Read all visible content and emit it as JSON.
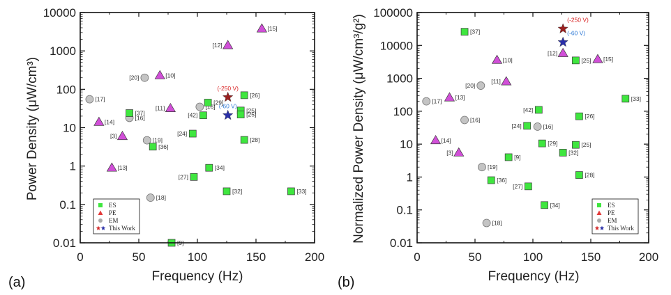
{
  "colors": {
    "ES": "#3fe63f",
    "PE": "#d14fd8",
    "EM": "#c4c4c4",
    "star_high": "#9a1f1f",
    "star_low": "#2a2fa8",
    "ann_high": "#d81e1e",
    "ann_low": "#2f7ad6"
  },
  "legend": {
    "items": [
      "ES",
      "PE",
      "EM",
      "This Work"
    ]
  },
  "chart_data": [
    {
      "type": "scatter",
      "panel_label": "(a)",
      "xlabel": "Frequency (Hz)",
      "ylabel": "Power Density (μW/cm³)",
      "xlim": [
        0,
        200
      ],
      "ylim": [
        0.01,
        10000
      ],
      "yscale": "log",
      "xticks": [
        "0",
        "50",
        "100",
        "150",
        "200"
      ],
      "yticks": [
        "0.01",
        "0.1",
        "1",
        "10",
        "100",
        "1000",
        "10000"
      ],
      "points": [
        {
          "cat": "EM",
          "x": 8,
          "y": 55,
          "label": "[17]"
        },
        {
          "cat": "EM",
          "x": 55,
          "y": 200,
          "label": "[20]"
        },
        {
          "cat": "EM",
          "x": 42,
          "y": 18,
          "label": "[16]"
        },
        {
          "cat": "EM",
          "x": 57,
          "y": 4.7,
          "label": "[19]"
        },
        {
          "cat": "EM",
          "x": 60,
          "y": 0.15,
          "label": "[18]"
        },
        {
          "cat": "EM",
          "x": 102,
          "y": 35,
          "label": "[16]"
        },
        {
          "cat": "PE",
          "x": 16,
          "y": 14,
          "label": "[14]"
        },
        {
          "cat": "PE",
          "x": 36,
          "y": 6,
          "label": "[3]"
        },
        {
          "cat": "PE",
          "x": 27,
          "y": 0.9,
          "label": "[13]"
        },
        {
          "cat": "PE",
          "x": 68,
          "y": 230,
          "label": "[10]"
        },
        {
          "cat": "PE",
          "x": 77,
          "y": 32,
          "label": "[11]"
        },
        {
          "cat": "PE",
          "x": 126,
          "y": 1400,
          "label": "[12]"
        },
        {
          "cat": "PE",
          "x": 155,
          "y": 3800,
          "label": "[15]"
        },
        {
          "cat": "ES",
          "x": 42,
          "y": 24,
          "label": "[37]"
        },
        {
          "cat": "ES",
          "x": 62,
          "y": 3.2,
          "label": "[36]"
        },
        {
          "cat": "ES",
          "x": 96,
          "y": 7,
          "label": "[24]"
        },
        {
          "cat": "ES",
          "x": 105,
          "y": 21,
          "label": "[42]"
        },
        {
          "cat": "ES",
          "x": 109,
          "y": 45,
          "label": "[29]"
        },
        {
          "cat": "ES",
          "x": 97,
          "y": 0.52,
          "label": "[27]"
        },
        {
          "cat": "ES",
          "x": 110,
          "y": 0.9,
          "label": "[34]"
        },
        {
          "cat": "ES",
          "x": 78,
          "y": 0.01,
          "label": "[9]"
        },
        {
          "cat": "ES",
          "x": 125,
          "y": 0.22,
          "label": "[32]"
        },
        {
          "cat": "ES",
          "x": 140,
          "y": 70,
          "label": "[26]"
        },
        {
          "cat": "ES",
          "x": 137,
          "y": 28,
          "label": "[25]"
        },
        {
          "cat": "ES",
          "x": 137,
          "y": 22,
          "label": "[25]"
        },
        {
          "cat": "ES",
          "x": 140,
          "y": 4.8,
          "label": "[28]"
        },
        {
          "cat": "ES",
          "x": 180,
          "y": 0.22,
          "label": "[33]"
        },
        {
          "cat": "TW",
          "x": 126,
          "y": 62,
          "label": "(-250 V)",
          "star": "high"
        },
        {
          "cat": "TW",
          "x": 126,
          "y": 21,
          "label": "(-60 V)",
          "star": "low"
        }
      ]
    },
    {
      "type": "scatter",
      "panel_label": "(b)",
      "xlabel": "Frequency (Hz)",
      "ylabel": "Normalized Power Density (μW/cm³/g²)",
      "xlim": [
        0,
        200
      ],
      "ylim": [
        0.01,
        100000
      ],
      "yscale": "log",
      "xticks": [
        "0",
        "50",
        "100",
        "150",
        "200"
      ],
      "yticks": [
        "0.01",
        "0.1",
        "1",
        "10",
        "100",
        "1000",
        "10000",
        "100000"
      ],
      "points": [
        {
          "cat": "ES",
          "x": 41,
          "y": 26000,
          "label": "[37]"
        },
        {
          "cat": "ES",
          "x": 137,
          "y": 3500,
          "label": "[25]"
        },
        {
          "cat": "ES",
          "x": 180,
          "y": 240,
          "label": "[33]"
        },
        {
          "cat": "ES",
          "x": 105,
          "y": 110,
          "label": "[42]"
        },
        {
          "cat": "ES",
          "x": 140,
          "y": 70,
          "label": "[26]"
        },
        {
          "cat": "ES",
          "x": 95,
          "y": 36,
          "label": "[24]"
        },
        {
          "cat": "ES",
          "x": 108,
          "y": 10.5,
          "label": "[29]"
        },
        {
          "cat": "ES",
          "x": 137,
          "y": 9.5,
          "label": "[25]"
        },
        {
          "cat": "ES",
          "x": 79,
          "y": 4,
          "label": "[9]"
        },
        {
          "cat": "ES",
          "x": 126,
          "y": 5.5,
          "label": "[32]"
        },
        {
          "cat": "ES",
          "x": 64,
          "y": 0.8,
          "label": "[36]"
        },
        {
          "cat": "ES",
          "x": 96,
          "y": 0.52,
          "label": "[27]"
        },
        {
          "cat": "ES",
          "x": 140,
          "y": 1.15,
          "label": "[28]"
        },
        {
          "cat": "ES",
          "x": 110,
          "y": 0.14,
          "label": "[34]"
        },
        {
          "cat": "PE",
          "x": 69,
          "y": 3600,
          "label": "[10]"
        },
        {
          "cat": "PE",
          "x": 126,
          "y": 5800,
          "label": "[12]"
        },
        {
          "cat": "PE",
          "x": 156,
          "y": 3800,
          "label": "[15]"
        },
        {
          "cat": "PE",
          "x": 77,
          "y": 800,
          "label": "[11]"
        },
        {
          "cat": "PE",
          "x": 28,
          "y": 260,
          "label": "[13]"
        },
        {
          "cat": "PE",
          "x": 16,
          "y": 13,
          "label": "[14]"
        },
        {
          "cat": "PE",
          "x": 36,
          "y": 5.5,
          "label": "[3]"
        },
        {
          "cat": "EM",
          "x": 55,
          "y": 600,
          "label": "[20]"
        },
        {
          "cat": "EM",
          "x": 8,
          "y": 200,
          "label": "[17]"
        },
        {
          "cat": "EM",
          "x": 41,
          "y": 54,
          "label": "[16]"
        },
        {
          "cat": "EM",
          "x": 104,
          "y": 34,
          "label": "[16]"
        },
        {
          "cat": "EM",
          "x": 56,
          "y": 2,
          "label": "[19]"
        },
        {
          "cat": "EM",
          "x": 60,
          "y": 0.04,
          "label": "[18]"
        },
        {
          "cat": "TW",
          "x": 126,
          "y": 32000,
          "label": "(-250 V)",
          "star": "high"
        },
        {
          "cat": "TW",
          "x": 126,
          "y": 12500,
          "label": "(-60 V)",
          "star": "low"
        }
      ]
    }
  ]
}
